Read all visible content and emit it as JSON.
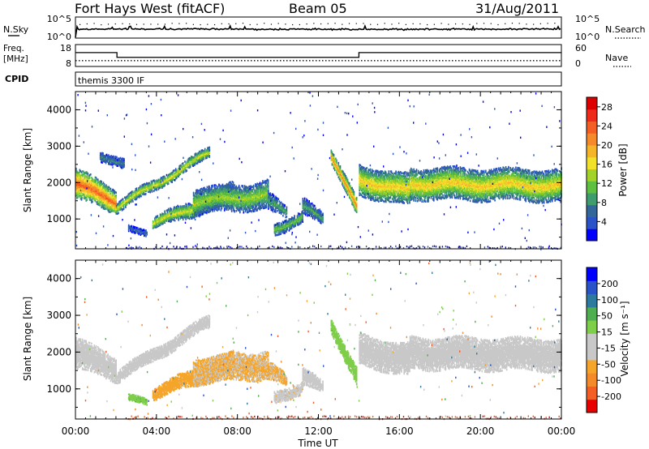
{
  "header": {
    "station": "Fort Hays West (fitACF)",
    "beam": "Beam 05",
    "date": "31/Aug/2011"
  },
  "noise_panel": {
    "left_label": "N.Sky",
    "left_ticks": [
      "10^5",
      "10^0"
    ],
    "right_label": "N.Search",
    "right_ticks": [
      "10^5",
      "10^0"
    ]
  },
  "freq_panel": {
    "left_label_1": "Freq.",
    "left_label_2": "[MHz]",
    "left_ticks": [
      "18",
      "8"
    ],
    "right_label": "Nave",
    "right_ticks": [
      "60",
      "0"
    ],
    "freq_segments": [
      {
        "start_ut": 0.0,
        "end_ut": 2.05,
        "mhz": 14.6
      },
      {
        "start_ut": 2.05,
        "end_ut": 14.0,
        "mhz": 12.0
      },
      {
        "start_ut": 14.0,
        "end_ut": 24.0,
        "mhz": 14.6
      }
    ],
    "nave_level": 16
  },
  "cpid": {
    "label": "CPID",
    "text": "themis 3300 IF"
  },
  "x_axis": {
    "label": "Time UT",
    "range_hours": [
      0,
      24
    ],
    "ticks": [
      "00:00",
      "04:00",
      "08:00",
      "12:00",
      "16:00",
      "20:00",
      "00:00"
    ]
  },
  "chart_data": [
    {
      "type": "heatmap",
      "name": "power",
      "ylabel": "Slant Range [km]",
      "ylim": [
        180,
        4500
      ],
      "yticks": [
        "1000",
        "2000",
        "3000",
        "4000"
      ],
      "colorbar": {
        "title": "Power [dB]",
        "range": [
          0,
          30
        ],
        "ticks": [
          "4",
          "8",
          "12",
          "16",
          "20",
          "24",
          "28"
        ],
        "colors": [
          "#0000ff",
          "#2a53c8",
          "#336699",
          "#3f9c6f",
          "#5fbf40",
          "#a3d22a",
          "#f2e12a",
          "#f5b52a",
          "#f58a2a",
          "#f35e24",
          "#ee2a1a",
          "#dd0000"
        ]
      },
      "bands": [
        {
          "t0": 0.0,
          "t1": 2.0,
          "r0": 2000,
          "r1": 1500,
          "w0": 420,
          "w1": 320,
          "core": 24
        },
        {
          "t0": 2.0,
          "t1": 6.6,
          "r0": 1350,
          "r1": 2850,
          "w0": 150,
          "w1": 150,
          "core": 16
        },
        {
          "t0": 1.2,
          "t1": 2.4,
          "r0": 2800,
          "r1": 2500,
          "w0": 140,
          "w1": 140,
          "core": 8
        },
        {
          "t0": 2.6,
          "t1": 3.5,
          "r0": 750,
          "r1": 700,
          "w0": 90,
          "w1": 90,
          "core": 6
        },
        {
          "t0": 3.8,
          "t1": 7.8,
          "r0": 900,
          "r1": 1750,
          "w0": 160,
          "w1": 280,
          "core": 16
        },
        {
          "t0": 5.8,
          "t1": 9.5,
          "r0": 1500,
          "r1": 1700,
          "w0": 350,
          "w1": 380,
          "core": 14
        },
        {
          "t0": 9.5,
          "t1": 10.4,
          "r0": 1500,
          "r1": 1250,
          "w0": 250,
          "w1": 150,
          "core": 10
        },
        {
          "t0": 9.8,
          "t1": 11.2,
          "r0": 750,
          "r1": 1100,
          "w0": 160,
          "w1": 160,
          "core": 12
        },
        {
          "t0": 11.2,
          "t1": 12.2,
          "r0": 1350,
          "r1": 1050,
          "w0": 240,
          "w1": 150,
          "core": 10
        },
        {
          "t0": 12.6,
          "t1": 13.9,
          "r0": 2800,
          "r1": 1300,
          "w0": 180,
          "w1": 240,
          "core": 22
        },
        {
          "t0": 14.0,
          "t1": 16.5,
          "r0": 2100,
          "r1": 1800,
          "w0": 420,
          "w1": 430,
          "core": 18
        },
        {
          "t0": 16.5,
          "t1": 24.0,
          "r0": 2000,
          "r1": 1950,
          "w0": 430,
          "w1": 430,
          "core": 18
        }
      ]
    },
    {
      "type": "heatmap",
      "name": "velocity",
      "ylabel": "Slant Range [km]",
      "ylim": [
        180,
        4500
      ],
      "yticks": [
        "1000",
        "2000",
        "3000",
        "4000"
      ],
      "colorbar": {
        "title": "Velocity [m s⁻¹]",
        "range": [
          -250,
          250
        ],
        "ticks": [
          "200",
          "100",
          "50",
          "15",
          "-15",
          "-50",
          "-100",
          "-200"
        ],
        "colors": [
          "#e80000",
          "#f35e24",
          "#f58a2a",
          "#f5a52a",
          "#c8c8c8",
          "#c8c8c8",
          "#7fce4a",
          "#4fae4f",
          "#2d7a9e",
          "#2a53c8",
          "#0000ff"
        ]
      },
      "bands": [
        {
          "t0": 0.0,
          "t1": 2.0,
          "r0": 2000,
          "r1": 1550,
          "w0": 420,
          "w1": 320,
          "vel": 0
        },
        {
          "t0": 2.0,
          "t1": 6.6,
          "r0": 1350,
          "r1": 2850,
          "w0": 170,
          "w1": 170,
          "vel": 0
        },
        {
          "t0": 2.6,
          "t1": 3.5,
          "r0": 750,
          "r1": 700,
          "w0": 90,
          "w1": 90,
          "vel": 60
        },
        {
          "t0": 3.8,
          "t1": 7.8,
          "r0": 900,
          "r1": 1750,
          "w0": 160,
          "w1": 280,
          "vel": -80
        },
        {
          "t0": 5.8,
          "t1": 9.5,
          "r0": 1500,
          "r1": 1700,
          "w0": 350,
          "w1": 380,
          "vel": -70
        },
        {
          "t0": 9.5,
          "t1": 10.4,
          "r0": 1500,
          "r1": 1250,
          "w0": 250,
          "w1": 150,
          "vel": -70
        },
        {
          "t0": 9.8,
          "t1": 11.2,
          "r0": 750,
          "r1": 1100,
          "w0": 160,
          "w1": 160,
          "vel": -60
        },
        {
          "t0": 11.2,
          "t1": 12.2,
          "r0": 1350,
          "r1": 1050,
          "w0": 240,
          "w1": 150,
          "vel": -40
        },
        {
          "t0": 12.6,
          "t1": 13.9,
          "r0": 2800,
          "r1": 1300,
          "w0": 180,
          "w1": 240,
          "vel": 55
        },
        {
          "t0": 14.0,
          "t1": 16.5,
          "r0": 2100,
          "r1": 1800,
          "w0": 420,
          "w1": 430,
          "vel": 0
        },
        {
          "t0": 16.5,
          "t1": 24.0,
          "r0": 2000,
          "r1": 1950,
          "w0": 430,
          "w1": 430,
          "vel": 0
        }
      ]
    }
  ]
}
